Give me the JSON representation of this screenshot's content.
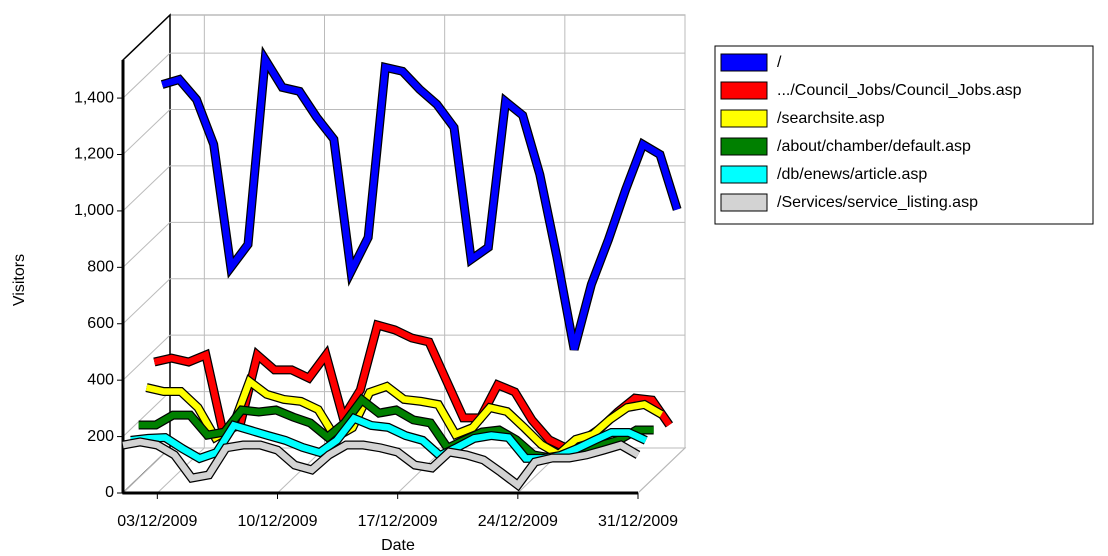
{
  "chart_data": {
    "type": "line3d",
    "x_label": "Date",
    "y_label": "Visitors",
    "x": [
      "01/12/2009",
      "02/12/2009",
      "03/12/2009",
      "04/12/2009",
      "05/12/2009",
      "06/12/2009",
      "07/12/2009",
      "08/12/2009",
      "09/12/2009",
      "10/12/2009",
      "11/12/2009",
      "12/12/2009",
      "13/12/2009",
      "14/12/2009",
      "15/12/2009",
      "16/12/2009",
      "17/12/2009",
      "18/12/2009",
      "19/12/2009",
      "20/12/2009",
      "21/12/2009",
      "22/12/2009",
      "23/12/2009",
      "24/12/2009",
      "25/12/2009",
      "26/12/2009",
      "27/12/2009",
      "28/12/2009",
      "29/12/2009",
      "30/12/2009",
      "31/12/2009"
    ],
    "xticks": [
      "03/12/2009",
      "10/12/2009",
      "17/12/2009",
      "24/12/2009",
      "31/12/2009"
    ],
    "ylim": [
      0,
      1535
    ],
    "yticks": [
      0,
      {
        "value": 200,
        "label": "200"
      },
      400,
      600,
      800,
      {
        "value": 1000,
        "label": "1,000"
      },
      {
        "value": 1200,
        "label": "1,200"
      },
      {
        "value": 1400,
        "label": "1,400"
      }
    ],
    "grid": true,
    "legend": "right",
    "series": [
      {
        "name": "/",
        "color": "#0000ff",
        "values": [
          1315,
          1333,
          1262,
          1103,
          667,
          748,
          1404,
          1305,
          1291,
          1199,
          1121,
          652,
          773,
          1376,
          1362,
          1298,
          1245,
          1163,
          695,
          738,
          1255,
          1206,
          996,
          702,
          376,
          606,
          766,
          943,
          1103,
          1067,
          872
        ]
      },
      {
        "name": ".../Council_Jobs/Council_Jobs.asp",
        "color": "#ff0000",
        "values": [
          358,
          372,
          358,
          383,
          110,
          135,
          383,
          330,
          330,
          301,
          383,
          160,
          259,
          489,
          472,
          443,
          429,
          294,
          160,
          160,
          277,
          252,
          152,
          82,
          53,
          82,
          124,
          181,
          230,
          223,
          135
        ]
      },
      {
        "name": "/searchsite.asp",
        "color": "#ffff00",
        "values": [
          294,
          280,
          280,
          223,
          117,
          152,
          316,
          270,
          252,
          245,
          216,
          117,
          152,
          277,
          298,
          252,
          245,
          234,
          128,
          152,
          223,
          209,
          152,
          92,
          57,
          110,
          128,
          181,
          223,
          234,
          199
        ]
      },
      {
        "name": "/about/chamber/default.asp",
        "color": "#008000",
        "values": [
          188,
          188,
          223,
          223,
          152,
          163,
          241,
          234,
          241,
          216,
          195,
          145,
          195,
          277,
          230,
          241,
          206,
          195,
          106,
          135,
          163,
          170,
          135,
          82,
          71,
          82,
          92,
          117,
          135,
          170,
          170
        ]
      },
      {
        "name": "/db/enews/article.asp",
        "color": "#00ffff",
        "values": [
          160,
          167,
          170,
          131,
          96,
          117,
          213,
          195,
          177,
          160,
          135,
          117,
          160,
          238,
          213,
          206,
          177,
          160,
          106,
          135,
          167,
          177,
          170,
          96,
          96,
          106,
          131,
          160,
          188,
          188,
          160
        ]
      },
      {
        "name": "/Services/service_listing.asp",
        "color": "#d3d3d3",
        "values": [
          170,
          181,
          170,
          135,
          53,
          64,
          160,
          170,
          170,
          152,
          99,
          82,
          135,
          170,
          170,
          160,
          145,
          99,
          89,
          145,
          135,
          117,
          74,
          28,
          110,
          124,
          124,
          135,
          152,
          170,
          135
        ]
      }
    ]
  }
}
